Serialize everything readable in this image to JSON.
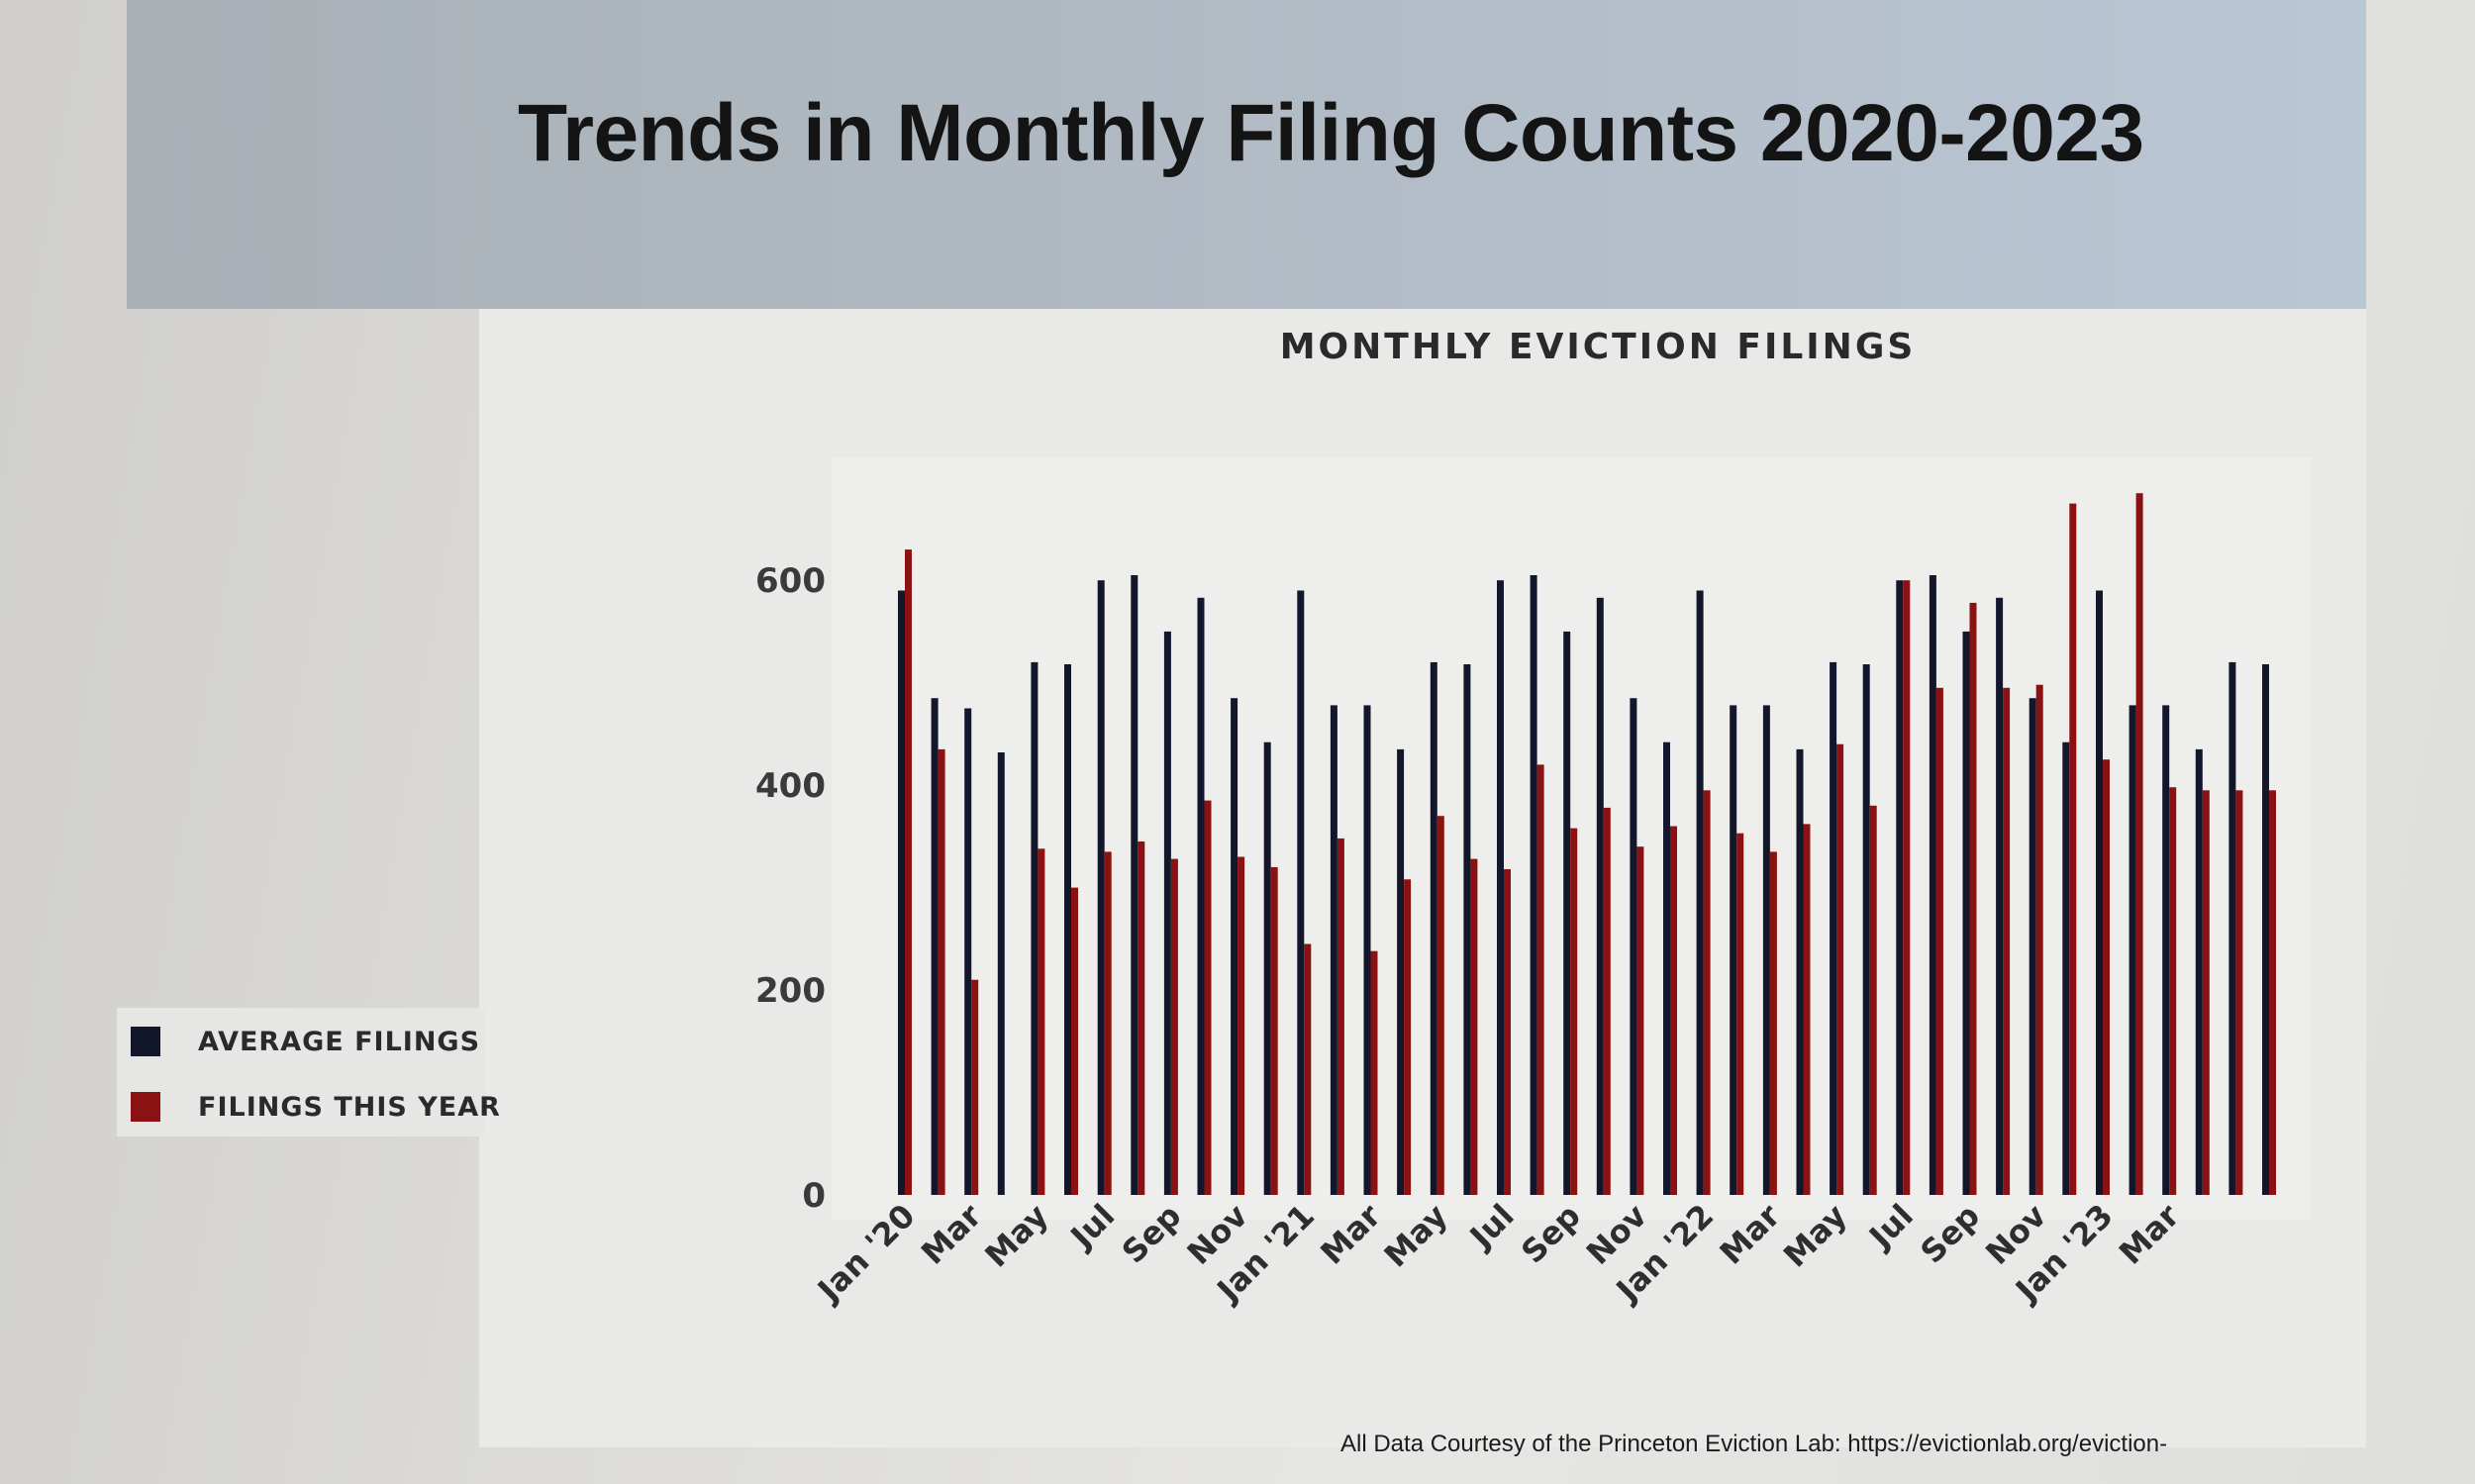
{
  "slide": {
    "title": "Trends in Monthly Filing Counts 2020-2023",
    "footer": "All Data Courtesy of the Princeton Eviction Lab: https://evictionlab.org/eviction-"
  },
  "legend": {
    "items": [
      {
        "label": "AVERAGE FILINGS",
        "color": "#13172b"
      },
      {
        "label": "FILINGS THIS YEAR",
        "color": "#8a1212"
      }
    ]
  },
  "chart_data": {
    "type": "bar",
    "title": "MONTHLY EVICTION FILINGS",
    "xlabel": "",
    "ylabel": "",
    "ylim": [
      0,
      720
    ],
    "yticks": [
      0,
      200,
      400,
      600
    ],
    "grid": false,
    "legend_position": "left",
    "x_tick_labels": [
      "Jan '20",
      "Mar",
      "May",
      "Jul",
      "Sep",
      "Nov",
      "Jan '21",
      "Mar",
      "May",
      "Jul",
      "Sep",
      "Nov",
      "Jan '22",
      "Mar",
      "May",
      "Jul",
      "Sep",
      "Nov",
      "Jan '23",
      "Mar"
    ],
    "series": [
      {
        "name": "AVERAGE FILINGS",
        "color": "#13172b",
        "values": [
          590,
          485,
          475,
          432,
          520,
          518,
          600,
          605,
          550,
          583,
          485,
          442,
          590,
          478,
          478,
          435,
          520,
          518,
          600,
          605,
          550,
          583,
          485,
          442,
          590,
          478,
          478,
          435,
          520,
          518,
          600,
          605,
          550,
          583,
          485,
          442,
          590,
          478,
          478,
          435,
          520,
          518
        ]
      },
      {
        "name": "FILINGS THIS YEAR",
        "color": "#8a1212",
        "values": [
          630,
          435,
          210,
          0,
          338,
          300,
          335,
          345,
          328,
          385,
          330,
          320,
          245,
          348,
          238,
          308,
          370,
          328,
          318,
          420,
          358,
          378,
          340,
          360,
          395,
          353,
          335,
          362,
          440,
          380,
          600,
          495,
          578,
          495,
          498,
          675,
          425,
          685,
          398,
          395,
          395,
          395
        ]
      }
    ]
  }
}
